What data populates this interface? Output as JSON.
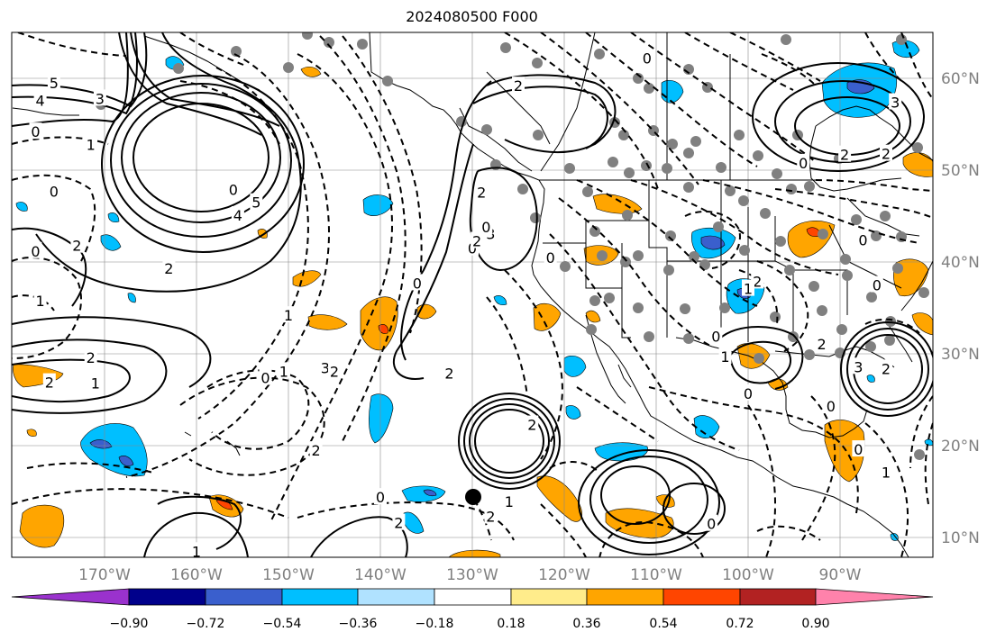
{
  "title": "2024080500 F000",
  "axes": {
    "lon_labels": [
      "170°W",
      "160°W",
      "150°W",
      "140°W",
      "130°W",
      "120°W",
      "110°W",
      "100°W",
      "90°W"
    ],
    "lat_labels": [
      "60°N",
      "50°N",
      "40°N",
      "30°N",
      "20°N",
      "10°N"
    ],
    "label_color": "#808080"
  },
  "colorbar": {
    "tick_labels": [
      "−0.90",
      "−0.72",
      "−0.54",
      "−0.36",
      "−0.18",
      "0.18",
      "0.36",
      "0.54",
      "0.72",
      "0.90"
    ],
    "colors": [
      "#9a32cd",
      "#00008b",
      "#3a5fcd",
      "#00bfff",
      "#b0e2ff",
      "#ffffff",
      "#ffec8b",
      "#ffa500",
      "#ff4500",
      "#b22222",
      "#ff82ab"
    ],
    "extend": "both"
  },
  "contour_labels": [
    {
      "t": "5",
      "lon": -175.5,
      "lat": 59.5
    },
    {
      "t": "4",
      "lon": -177,
      "lat": 57.6
    },
    {
      "t": "3",
      "lon": -170.5,
      "lat": 57.8
    },
    {
      "t": "0",
      "lon": -177.5,
      "lat": 54.2
    },
    {
      "t": "1",
      "lon": -171.5,
      "lat": 52.8
    },
    {
      "t": "0",
      "lon": -175.5,
      "lat": 47.7
    },
    {
      "t": "0",
      "lon": -156,
      "lat": 47.9
    },
    {
      "t": "5",
      "lon": -153.5,
      "lat": 46.5
    },
    {
      "t": "4",
      "lon": -155.5,
      "lat": 45.1
    },
    {
      "t": "2",
      "lon": -173,
      "lat": 41.8
    },
    {
      "t": "2",
      "lon": -182,
      "lat": 39.8
    },
    {
      "t": "0",
      "lon": -177.5,
      "lat": 41.2
    },
    {
      "t": "2",
      "lon": -163,
      "lat": 39.3
    },
    {
      "t": "2",
      "lon": -181,
      "lat": 37.1
    },
    {
      "t": "1",
      "lon": -177,
      "lat": 35.8
    },
    {
      "t": "1",
      "lon": -150,
      "lat": 34.2
    },
    {
      "t": "2",
      "lon": -171.5,
      "lat": 29.6
    },
    {
      "t": "2",
      "lon": -176,
      "lat": 26.9
    },
    {
      "t": "1",
      "lon": -171,
      "lat": 26.8
    },
    {
      "t": "0",
      "lon": -152.5,
      "lat": 27.4
    },
    {
      "t": "1",
      "lon": -150.5,
      "lat": 28.1
    },
    {
      "t": "3",
      "lon": -146,
      "lat": 28.5
    },
    {
      "t": "2",
      "lon": -145,
      "lat": 28.1
    },
    {
      "t": "2",
      "lon": -147,
      "lat": 19.5
    },
    {
      "t": "1",
      "lon": -160,
      "lat": 8.5
    },
    {
      "t": "0",
      "lon": -140,
      "lat": 14.4
    },
    {
      "t": "2",
      "lon": -138,
      "lat": 11.6
    },
    {
      "t": "0",
      "lon": -136,
      "lat": 37.7
    },
    {
      "t": "2",
      "lon": -132.5,
      "lat": 27.9
    },
    {
      "t": "0",
      "lon": -130,
      "lat": 41.5
    },
    {
      "t": "2",
      "lon": -129.5,
      "lat": 42.3
    },
    {
      "t": "3",
      "lon": -128,
      "lat": 43.1
    },
    {
      "t": "2",
      "lon": -129,
      "lat": 47.6
    },
    {
      "t": "0",
      "lon": -128.5,
      "lat": 43.8
    },
    {
      "t": "2",
      "lon": -125,
      "lat": 59.2
    },
    {
      "t": "0",
      "lon": -111,
      "lat": 62.2
    },
    {
      "t": "2",
      "lon": -123.5,
      "lat": 22.3
    },
    {
      "t": "1",
      "lon": -126,
      "lat": 13.9
    },
    {
      "t": "2",
      "lon": -128,
      "lat": 12.3
    },
    {
      "t": "0",
      "lon": -121.5,
      "lat": 40.5
    },
    {
      "t": "0",
      "lon": -103.5,
      "lat": 31.9
    },
    {
      "t": "1",
      "lon": -102.5,
      "lat": 29.7
    },
    {
      "t": "0",
      "lon": -100,
      "lat": 25.7
    },
    {
      "t": "2",
      "lon": -99,
      "lat": 37.9
    },
    {
      "t": "1",
      "lon": -100,
      "lat": 37.1
    },
    {
      "t": "0",
      "lon": -104,
      "lat": 11.5
    },
    {
      "t": "0",
      "lon": -86,
      "lat": 37.5
    },
    {
      "t": "2",
      "lon": -92,
      "lat": 31.1
    },
    {
      "t": "3",
      "lon": -88,
      "lat": 28.6
    },
    {
      "t": "0",
      "lon": -91,
      "lat": 24.3
    },
    {
      "t": "2",
      "lon": -85,
      "lat": 28.4
    },
    {
      "t": "0",
      "lon": -88,
      "lat": 19.6
    },
    {
      "t": "1",
      "lon": -85,
      "lat": 17.1
    },
    {
      "t": "2",
      "lon": -89.5,
      "lat": 51.7
    },
    {
      "t": "0",
      "lon": -94,
      "lat": 50.8
    },
    {
      "t": "0",
      "lon": -87.5,
      "lat": 42.4
    },
    {
      "t": "3",
      "lon": -84,
      "lat": 57.4
    },
    {
      "t": "2",
      "lon": -85,
      "lat": 51.8
    }
  ]
}
